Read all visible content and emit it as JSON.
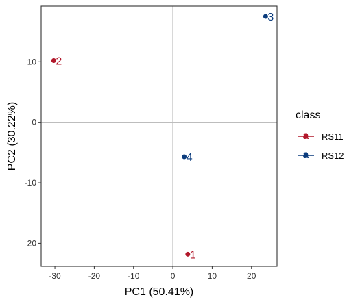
{
  "chart_data": {
    "type": "scatter",
    "title": "",
    "xlabel": "PC1 (50.41%)",
    "ylabel": "PC2 (30.22%)",
    "xlim": [
      -33.5,
      26.5
    ],
    "ylim": [
      -23.8,
      19.2
    ],
    "x_ticks": [
      -30,
      -20,
      -10,
      0,
      10,
      20
    ],
    "y_ticks": [
      -20,
      -10,
      0,
      10
    ],
    "reference_lines": {
      "x": 0,
      "y": 0
    },
    "grid": false,
    "legend": {
      "title": "class",
      "placement": "right",
      "entries": [
        {
          "name": "RS11",
          "color": "#b2182b"
        },
        {
          "name": "RS12",
          "color": "#0b3c7d"
        }
      ]
    },
    "series": [
      {
        "name": "RS11",
        "color": "#b2182b",
        "points": [
          {
            "x": 3.8,
            "y": -21.8,
            "label": "1"
          },
          {
            "x": -30.3,
            "y": 10.2,
            "label": "2"
          }
        ]
      },
      {
        "name": "RS12",
        "color": "#0b3c7d",
        "points": [
          {
            "x": 23.6,
            "y": 17.5,
            "label": "3"
          },
          {
            "x": 2.9,
            "y": -5.7,
            "label": "4"
          }
        ]
      }
    ]
  }
}
